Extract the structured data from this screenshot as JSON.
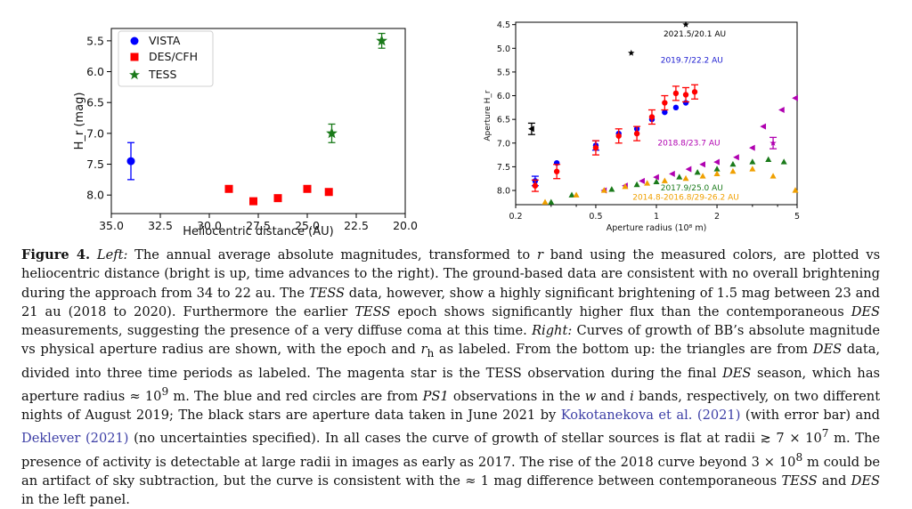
{
  "chart_data": [
    {
      "type": "scatter",
      "title": "",
      "xlabel": "Heliocentric distance (AU)",
      "ylabel": "H_r (mag)",
      "xlim": [
        35.0,
        20.0
      ],
      "ylim": [
        8.3,
        5.3
      ],
      "x_ticks": [
        "35.0",
        "32.5",
        "30.0",
        "27.5",
        "25.0",
        "22.5",
        "20.0"
      ],
      "x_tick_values": [
        35.0,
        32.5,
        30.0,
        27.5,
        25.0,
        22.5,
        20.0
      ],
      "y_ticks": [
        "5.5",
        "6.0",
        "6.5",
        "7.0",
        "7.5",
        "8.0"
      ],
      "y_tick_values": [
        5.5,
        6.0,
        6.5,
        7.0,
        7.5,
        8.0
      ],
      "legend_position": "top-left",
      "series": [
        {
          "name": "VISTA",
          "color": "#0000ff",
          "marker": "circle",
          "points": [
            {
              "x": 34.0,
              "y": 7.45,
              "err": 0.3
            }
          ]
        },
        {
          "name": "DES/CFH",
          "color": "#ff0000",
          "marker": "square",
          "points": [
            {
              "x": 29.0,
              "y": 7.9
            },
            {
              "x": 27.75,
              "y": 8.1
            },
            {
              "x": 26.5,
              "y": 8.05
            },
            {
              "x": 25.0,
              "y": 7.9
            },
            {
              "x": 23.9,
              "y": 7.95
            }
          ]
        },
        {
          "name": "TESS",
          "color": "#1a7a1a",
          "marker": "star",
          "points": [
            {
              "x": 23.75,
              "y": 7.0,
              "err": 0.15
            },
            {
              "x": 21.2,
              "y": 5.5,
              "err": 0.12
            }
          ]
        }
      ]
    },
    {
      "type": "scatter",
      "title": "",
      "xlabel": "Aperture radius (10⁸ m)",
      "ylabel": "Aperture H_r",
      "xscale": "log",
      "xlim": [
        0.2,
        5
      ],
      "ylim": [
        8.3,
        4.45
      ],
      "x_ticks": [
        "0.2",
        "0.5",
        "1",
        "2",
        "5"
      ],
      "x_tick_values": [
        0.2,
        0.5,
        1,
        2,
        5
      ],
      "y_ticks": [
        "4.5",
        "5.0",
        "5.5",
        "6.0",
        "6.5",
        "7.0",
        "7.5",
        "8.0"
      ],
      "y_tick_values": [
        4.5,
        5.0,
        5.5,
        6.0,
        6.5,
        7.0,
        7.5,
        8.0
      ],
      "annotations": [
        {
          "text": "2021.5/20.1 AU",
          "x": 1.55,
          "y": 4.75,
          "color": "#000000"
        },
        {
          "text": "2019.7/22.2 AU",
          "x": 1.5,
          "y": 5.3,
          "color": "#1a1ad0"
        },
        {
          "text": "2018.8/23.7 AU",
          "x": 1.45,
          "y": 7.05,
          "color": "#b000b0"
        },
        {
          "text": "2017.9/25.0 AU",
          "x": 1.5,
          "y": 8.0,
          "color": "#1a7a1a"
        },
        {
          "text": "2014.8-2016.8/29-26.2 AU",
          "x": 1.4,
          "y": 8.2,
          "color": "#f0a000"
        }
      ],
      "series": [
        {
          "name": "Black stars (2021)",
          "color": "#000000",
          "marker": "star",
          "points": [
            {
              "x": 0.75,
              "y": 5.1
            },
            {
              "x": 1.4,
              "y": 4.5
            }
          ]
        },
        {
          "name": "Black errorbar point",
          "color": "#000000",
          "marker": "triangle-left",
          "points": [
            {
              "x": 0.24,
              "y": 6.7,
              "err": 0.12
            }
          ]
        },
        {
          "name": "PS1 w (blue circles)",
          "color": "#0000ff",
          "marker": "circle",
          "points": [
            {
              "x": 0.25,
              "y": 7.8,
              "err": 0.1
            },
            {
              "x": 0.32,
              "y": 7.42
            },
            {
              "x": 0.5,
              "y": 7.05,
              "err": 0.1
            },
            {
              "x": 0.65,
              "y": 6.8
            },
            {
              "x": 0.8,
              "y": 6.7
            },
            {
              "x": 0.95,
              "y": 6.5
            },
            {
              "x": 1.1,
              "y": 6.35
            },
            {
              "x": 1.25,
              "y": 6.25
            },
            {
              "x": 1.4,
              "y": 6.15
            }
          ]
        },
        {
          "name": "PS1 i (red circles)",
          "color": "#ff0000",
          "marker": "circle",
          "points": [
            {
              "x": 0.25,
              "y": 7.9,
              "err": 0.12
            },
            {
              "x": 0.32,
              "y": 7.6,
              "err": 0.15
            },
            {
              "x": 0.5,
              "y": 7.1,
              "err": 0.15
            },
            {
              "x": 0.65,
              "y": 6.85,
              "err": 0.15
            },
            {
              "x": 0.8,
              "y": 6.8,
              "err": 0.15
            },
            {
              "x": 0.95,
              "y": 6.45,
              "err": 0.15
            },
            {
              "x": 1.1,
              "y": 6.15,
              "err": 0.15
            },
            {
              "x": 1.25,
              "y": 5.95,
              "err": 0.15
            },
            {
              "x": 1.4,
              "y": 5.98,
              "err": 0.15
            },
            {
              "x": 1.55,
              "y": 5.92,
              "err": 0.15
            }
          ]
        },
        {
          "name": "2018.8/23.7 AU",
          "color": "#b000b0",
          "marker": "triangle-left",
          "points": [
            {
              "x": 0.55,
              "y": 8.0
            },
            {
              "x": 0.7,
              "y": 7.9
            },
            {
              "x": 0.85,
              "y": 7.8
            },
            {
              "x": 1.0,
              "y": 7.72
            },
            {
              "x": 1.2,
              "y": 7.65
            },
            {
              "x": 1.45,
              "y": 7.55
            },
            {
              "x": 1.7,
              "y": 7.45
            },
            {
              "x": 2.0,
              "y": 7.4
            },
            {
              "x": 2.5,
              "y": 7.3
            },
            {
              "x": 3.0,
              "y": 7.1
            },
            {
              "x": 3.4,
              "y": 6.65
            },
            {
              "x": 4.2,
              "y": 6.3
            },
            {
              "x": 4.9,
              "y": 6.05
            }
          ]
        },
        {
          "name": "2018.8 TESS star",
          "color": "#b000b0",
          "marker": "star",
          "points": [
            {
              "x": 3.8,
              "y": 7.0,
              "err": 0.12
            }
          ]
        },
        {
          "name": "2017.9/25.0 AU",
          "color": "#1a7a1a",
          "marker": "triangle",
          "points": [
            {
              "x": 0.3,
              "y": 8.25
            },
            {
              "x": 0.38,
              "y": 8.1
            },
            {
              "x": 0.6,
              "y": 7.98
            },
            {
              "x": 0.8,
              "y": 7.88
            },
            {
              "x": 1.0,
              "y": 7.82
            },
            {
              "x": 1.3,
              "y": 7.72
            },
            {
              "x": 1.6,
              "y": 7.62
            },
            {
              "x": 2.0,
              "y": 7.55
            },
            {
              "x": 2.4,
              "y": 7.45
            },
            {
              "x": 3.0,
              "y": 7.4
            },
            {
              "x": 3.6,
              "y": 7.35
            },
            {
              "x": 4.3,
              "y": 7.4
            }
          ]
        },
        {
          "name": "2014.8-2016.8/29-26.2 AU",
          "color": "#f0a000",
          "marker": "triangle",
          "points": [
            {
              "x": 0.28,
              "y": 8.25
            },
            {
              "x": 0.4,
              "y": 8.1
            },
            {
              "x": 0.55,
              "y": 8.0
            },
            {
              "x": 0.7,
              "y": 7.92
            },
            {
              "x": 0.9,
              "y": 7.85
            },
            {
              "x": 1.1,
              "y": 7.8
            },
            {
              "x": 1.4,
              "y": 7.75
            },
            {
              "x": 1.7,
              "y": 7.7
            },
            {
              "x": 2.0,
              "y": 7.65
            },
            {
              "x": 2.4,
              "y": 7.6
            },
            {
              "x": 3.0,
              "y": 7.55
            },
            {
              "x": 3.8,
              "y": 7.7
            },
            {
              "x": 4.9,
              "y": 8.0
            }
          ]
        }
      ]
    }
  ],
  "caption": {
    "figure_label": "Figure 4.",
    "left_label": "Left:",
    "p1": "The annual average absolute magnitudes, transformed to",
    "r_band": "r",
    "p2": "band using the measured colors, are plotted vs heliocentric distance (bright is up, time advances to the right). The ground-based data are consistent with no overall brightening during the approach from 34 to 22 au. The",
    "tess1": "TESS",
    "p3": "data, however, show a highly significant brightening of 1.5 mag between 23 and 21 au (2018 to 2020). Furthermore the earlier",
    "tess2": "TESS",
    "p4": "epoch shows significantly higher flux than the contemporaneous",
    "des1": "DES",
    "p5": "measurements, suggesting the presence of a very diffuse coma at this time.",
    "right_label": "Right:",
    "p6": "Curves of growth of BB’s absolute magnitude vs physical aperture radius are shown, with the epoch and",
    "rh": "r",
    "rh_sub": "h",
    "p7": "as labeled. From the bottom up: the triangles are from",
    "des2": "DES",
    "p8": "data, divided into three time periods as labeled. The magenta star is the TESS observation during the final",
    "des3": "DES",
    "p9": "season, which has aperture radius ≈ 10",
    "exp9": "9",
    "p10": "m. The blue and red circles are from",
    "ps1": "PS1",
    "p11": "observations in the",
    "w": "w",
    "p12": "and",
    "i_band": "i",
    "p13": "bands, respectively, on two different nights of August 2019; The black stars are aperture data taken in June 2021 by",
    "cite1": "Kokotanekova et al. (2021)",
    "p14": "(with error bar) and",
    "cite2": "Deklever (2021)",
    "p15": "(no uncertainties specified). In all cases the curve of growth of stellar sources is flat at radii ≳ 7 × 10",
    "exp7": "7",
    "p16": "m. The presence of activity is detectable at large radii in images as early as 2017. The rise of the 2018 curve beyond 3 × 10",
    "exp8": "8",
    "p17": "m could be an artifact of sky subtraction, but the curve is consistent with the ≈ 1 mag difference between contemporaneous",
    "tess3": "TESS",
    "and": "and",
    "des4": "DES",
    "p18": "in the left panel."
  }
}
